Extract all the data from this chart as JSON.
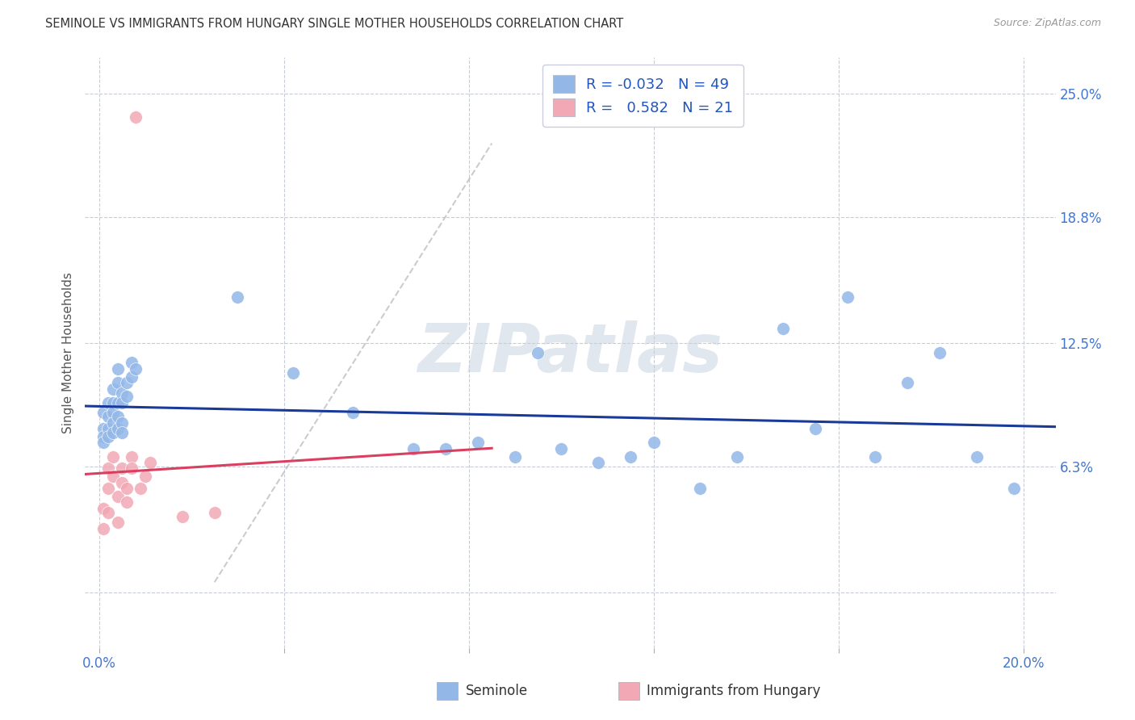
{
  "title": "SEMINOLE VS IMMIGRANTS FROM HUNGARY SINGLE MOTHER HOUSEHOLDS CORRELATION CHART",
  "source": "Source: ZipAtlas.com",
  "xlim": [
    -0.003,
    0.207
  ],
  "ylim": [
    -0.028,
    0.268
  ],
  "x_ticks": [
    0.0,
    0.04,
    0.08,
    0.12,
    0.16,
    0.2
  ],
  "x_tick_labels": [
    "0.0%",
    "",
    "",
    "",
    "",
    "20.0%"
  ],
  "y_ticks": [
    0.0,
    0.063,
    0.125,
    0.188,
    0.25
  ],
  "y_tick_labels": [
    "",
    "6.3%",
    "12.5%",
    "18.8%",
    "25.0%"
  ],
  "blue_color": "#93B8E8",
  "pink_color": "#F2A8B5",
  "blue_line_color": "#1A3A99",
  "pink_line_color": "#D94060",
  "grid_color": "#C8CCD8",
  "bg_color": "#FFFFFF",
  "watermark_color": "#C5D0E0",
  "legend_R_blue": "-0.032",
  "legend_N_blue": "49",
  "legend_R_pink": "0.582",
  "legend_N_pink": "21",
  "label_blue": "Seminole",
  "label_pink": "Immigrants from Hungary",
  "blue_x": [
    0.001,
    0.001,
    0.001,
    0.001,
    0.002,
    0.002,
    0.002,
    0.002,
    0.003,
    0.003,
    0.003,
    0.003,
    0.003,
    0.004,
    0.004,
    0.004,
    0.004,
    0.004,
    0.005,
    0.005,
    0.005,
    0.005,
    0.006,
    0.006,
    0.007,
    0.007,
    0.008,
    0.03,
    0.042,
    0.055,
    0.068,
    0.075,
    0.082,
    0.09,
    0.095,
    0.1,
    0.108,
    0.115,
    0.12,
    0.13,
    0.138,
    0.148,
    0.155,
    0.162,
    0.168,
    0.175,
    0.182,
    0.19,
    0.198
  ],
  "blue_y": [
    0.09,
    0.082,
    0.078,
    0.075,
    0.095,
    0.088,
    0.082,
    0.078,
    0.102,
    0.095,
    0.09,
    0.085,
    0.08,
    0.112,
    0.105,
    0.095,
    0.088,
    0.082,
    0.1,
    0.095,
    0.085,
    0.08,
    0.105,
    0.098,
    0.115,
    0.108,
    0.112,
    0.148,
    0.11,
    0.09,
    0.072,
    0.072,
    0.075,
    0.068,
    0.12,
    0.072,
    0.065,
    0.068,
    0.075,
    0.052,
    0.068,
    0.132,
    0.082,
    0.148,
    0.068,
    0.105,
    0.12,
    0.068,
    0.052
  ],
  "pink_x": [
    0.001,
    0.001,
    0.002,
    0.002,
    0.002,
    0.003,
    0.003,
    0.004,
    0.004,
    0.005,
    0.005,
    0.006,
    0.006,
    0.007,
    0.007,
    0.008,
    0.009,
    0.01,
    0.011,
    0.018,
    0.025
  ],
  "pink_y": [
    0.042,
    0.032,
    0.062,
    0.052,
    0.04,
    0.068,
    0.058,
    0.048,
    0.035,
    0.062,
    0.055,
    0.052,
    0.045,
    0.068,
    0.062,
    0.238,
    0.052,
    0.058,
    0.065,
    0.038,
    0.04
  ],
  "ref_line_x": [
    0.025,
    0.085
  ],
  "ref_line_y": [
    0.005,
    0.225
  ]
}
